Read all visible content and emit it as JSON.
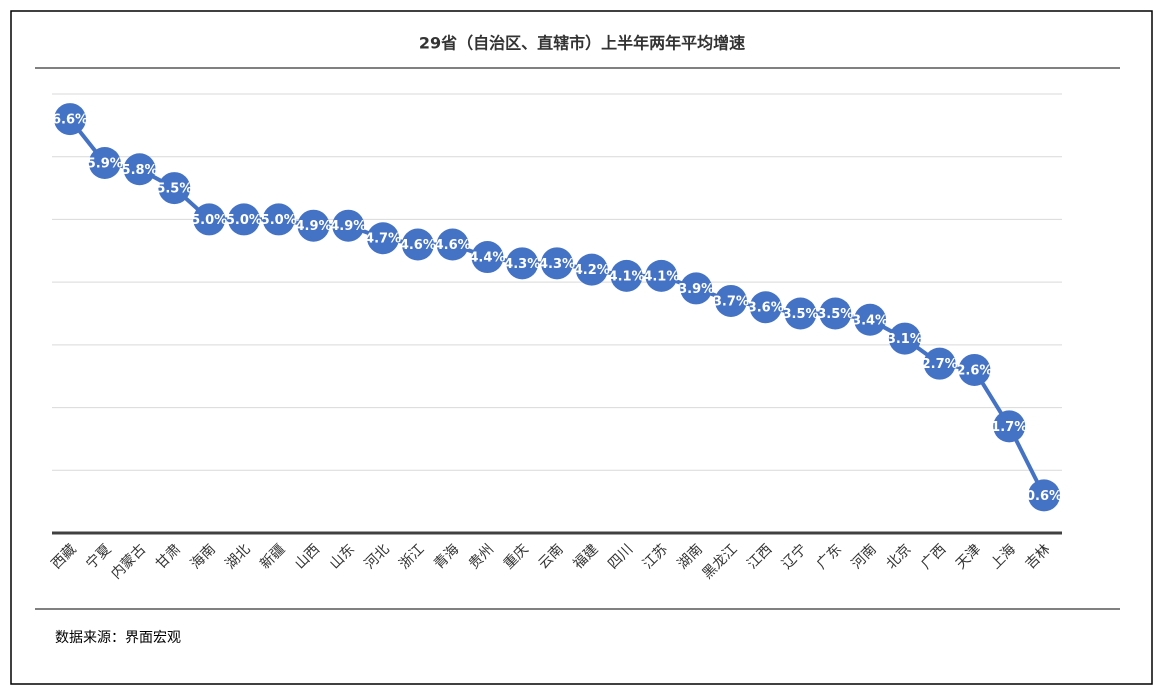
{
  "chart_data": {
    "type": "line",
    "title": "29省（自治区、直辖市）上半年两年平均增速",
    "categories": [
      "西藏",
      "宁夏",
      "内蒙古",
      "甘肃",
      "海南",
      "湖北",
      "新疆",
      "山西",
      "山东",
      "河北",
      "浙江",
      "青海",
      "贵州",
      "重庆",
      "云南",
      "福建",
      "四川",
      "江苏",
      "湖南",
      "黑龙江",
      "江西",
      "辽宁",
      "广东",
      "河南",
      "北京",
      "广西",
      "天津",
      "上海",
      "吉林"
    ],
    "values": [
      6.6,
      5.9,
      5.8,
      5.5,
      5.0,
      5.0,
      5.0,
      4.9,
      4.9,
      4.7,
      4.6,
      4.6,
      4.4,
      4.3,
      4.3,
      4.2,
      4.1,
      4.1,
      3.9,
      3.7,
      3.6,
      3.5,
      3.5,
      3.4,
      3.1,
      2.7,
      2.6,
      1.7,
      0.6
    ],
    "value_labels": [
      "6.6%",
      "5.9%",
      "5.8%",
      "5.5%",
      "5.0%",
      "5.0%",
      "5.0%",
      "4.9%",
      "4.9%",
      "4.7%",
      "4.6%",
      "4.6%",
      "4.4%",
      "4.3%",
      "4.3%",
      "4.2%",
      "4.1%",
      "4.1%",
      "3.9%",
      "3.7%",
      "3.6%",
      "3.5%",
      "3.5%",
      "3.4%",
      "3.1%",
      "2.7%",
      "2.6%",
      "1.7%",
      "0.6%"
    ],
    "color": "#4472c4",
    "ylim": [
      0,
      7
    ],
    "yticks": [
      0,
      1,
      2,
      3,
      4,
      5,
      6,
      7
    ],
    "grid": true,
    "source": "数据来源：界面宏观"
  }
}
